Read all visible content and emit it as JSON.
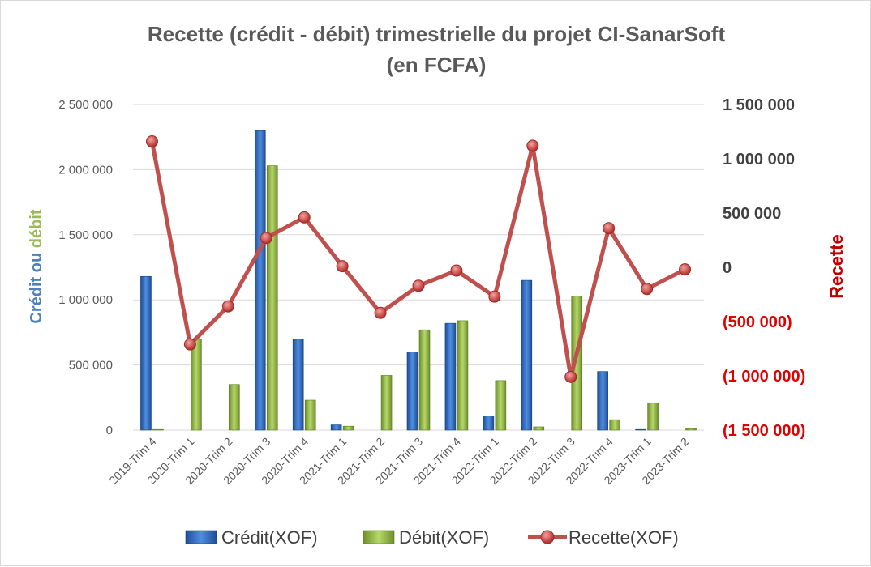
{
  "chart_data": {
    "type": "bar",
    "title_line1": "Recette (crédit - débit) trimestrielle du projet CI-SanarSoft",
    "title_line2": "(en FCFA)",
    "ylabel_left_parts": [
      "Crédit",
      " ou ",
      "débit"
    ],
    "ylabel_right": "Recette",
    "categories": [
      "2019-Trim 4",
      "2020-Trim 1",
      "2020-Trim 2",
      "2020-Trim 3",
      "2020-Trim 4",
      "2021-Trim 1",
      "2021-Trim 2",
      "2021-Trim 3",
      "2021-Trim 4",
      "2022-Trim 1",
      "2022-Trim 2",
      "2022-Trim 3",
      "2022-Trim 4",
      "2023-Trim 1",
      "2023-Trim 2"
    ],
    "left_axis": {
      "min": 0,
      "max": 2500000,
      "ticks": [
        0,
        500000,
        1000000,
        1500000,
        2000000,
        2500000
      ],
      "tick_labels": [
        "0",
        "500 000",
        "1 000 000",
        "1 500 000",
        "2 000 000",
        "2 500 000"
      ]
    },
    "right_axis": {
      "min": -1500000,
      "max": 1500000,
      "ticks": [
        -1500000,
        -1000000,
        -500000,
        0,
        500000,
        1000000,
        1500000
      ],
      "tick_labels": [
        "(1 500 000)",
        "(1 000 000)",
        "(500 000)",
        "0",
        "500 000",
        "1 000 000",
        "1 500 000"
      ]
    },
    "series": [
      {
        "name": "Crédit(XOF)",
        "kind": "bar",
        "axis": "left",
        "color": "#2e6fc9",
        "values": [
          1180000,
          0,
          0,
          2300000,
          700000,
          40000,
          0,
          600000,
          820000,
          110000,
          1150000,
          0,
          450000,
          5000,
          0
        ]
      },
      {
        "name": "Débit(XOF)",
        "kind": "bar",
        "axis": "left",
        "color": "#8db33a",
        "values": [
          5000,
          700000,
          350000,
          2030000,
          230000,
          30000,
          420000,
          770000,
          840000,
          380000,
          25000,
          1030000,
          80000,
          210000,
          10000
        ]
      },
      {
        "name": "Recette(XOF)",
        "kind": "line",
        "axis": "right",
        "color": "#c0504d",
        "values": [
          1160000,
          -710000,
          -360000,
          270000,
          460000,
          10000,
          -420000,
          -170000,
          -30000,
          -270000,
          1120000,
          -1010000,
          360000,
          -200000,
          -20000
        ]
      }
    ],
    "colors": {
      "credit_label": "#4f81bd",
      "debit_label": "#9bbb59",
      "recette_label": "#c00000",
      "negative_tick": "#e00000",
      "grid": "#d9d9d9"
    },
    "grid": true,
    "legend": "bottom"
  }
}
